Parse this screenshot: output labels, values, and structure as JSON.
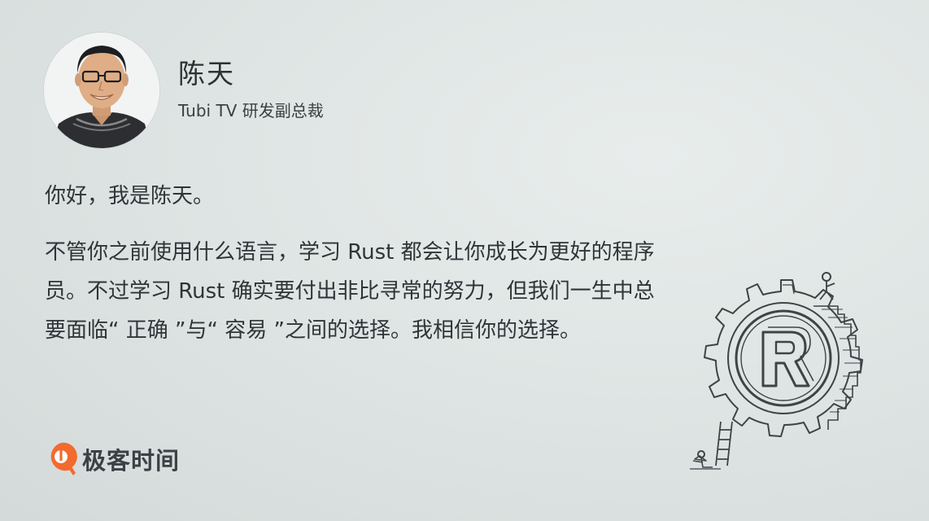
{
  "author": {
    "name": "陈天",
    "title": "Tubi TV 研发副总裁",
    "avatar_icon": "person-portrait-icon"
  },
  "message": {
    "greeting": "你好，我是陈天。",
    "body": "不管你之前使用什么语言，学习 Rust 都会让你成长为更好的程序员。不过学习 Rust 确实要付出非比寻常的努力，但我们一生中总要面临“ 正确 ”与“ 容易 ”之间的选择。我相信你的选择。"
  },
  "brand": {
    "name": "极客时间",
    "logo_icon": "geektime-logo-icon",
    "color": "#f36a2d"
  },
  "illustration": {
    "icon": "rust-gear-illustration-icon",
    "emblem_letter": "R"
  }
}
